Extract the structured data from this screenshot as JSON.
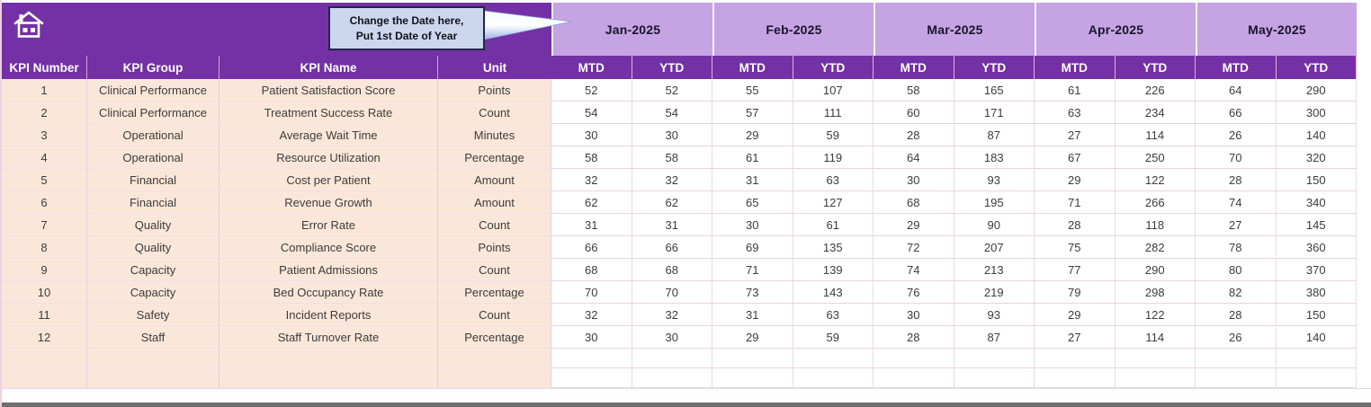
{
  "banner": {
    "callout_line1": "Change the Date here,",
    "callout_line2": "Put 1st Date of Year"
  },
  "months": [
    "Jan-2025",
    "Feb-2025",
    "Mar-2025",
    "Apr-2025",
    "May-2025"
  ],
  "left_headers": [
    "KPI Number",
    "KPI Group",
    "KPI Name",
    "Unit"
  ],
  "sub_headers": [
    "MTD",
    "YTD"
  ],
  "rows": [
    {
      "num": "1",
      "group": "Clinical Performance",
      "name": "Patient Satisfaction Score",
      "unit": "Points",
      "values": [
        "52",
        "52",
        "55",
        "107",
        "58",
        "165",
        "61",
        "226",
        "64",
        "290"
      ]
    },
    {
      "num": "2",
      "group": "Clinical Performance",
      "name": "Treatment Success Rate",
      "unit": "Count",
      "values": [
        "54",
        "54",
        "57",
        "111",
        "60",
        "171",
        "63",
        "234",
        "66",
        "300"
      ]
    },
    {
      "num": "3",
      "group": "Operational",
      "name": "Average Wait Time",
      "unit": "Minutes",
      "values": [
        "30",
        "30",
        "29",
        "59",
        "28",
        "87",
        "27",
        "114",
        "26",
        "140"
      ]
    },
    {
      "num": "4",
      "group": "Operational",
      "name": "Resource Utilization",
      "unit": "Percentage",
      "values": [
        "58",
        "58",
        "61",
        "119",
        "64",
        "183",
        "67",
        "250",
        "70",
        "320"
      ]
    },
    {
      "num": "5",
      "group": "Financial",
      "name": "Cost per Patient",
      "unit": "Amount",
      "values": [
        "32",
        "32",
        "31",
        "63",
        "30",
        "93",
        "29",
        "122",
        "28",
        "150"
      ]
    },
    {
      "num": "6",
      "group": "Financial",
      "name": "Revenue Growth",
      "unit": "Amount",
      "values": [
        "62",
        "62",
        "65",
        "127",
        "68",
        "195",
        "71",
        "266",
        "74",
        "340"
      ]
    },
    {
      "num": "7",
      "group": "Quality",
      "name": "Error Rate",
      "unit": "Count",
      "values": [
        "31",
        "31",
        "30",
        "61",
        "29",
        "90",
        "28",
        "118",
        "27",
        "145"
      ]
    },
    {
      "num": "8",
      "group": "Quality",
      "name": "Compliance Score",
      "unit": "Points",
      "values": [
        "66",
        "66",
        "69",
        "135",
        "72",
        "207",
        "75",
        "282",
        "78",
        "360"
      ]
    },
    {
      "num": "9",
      "group": "Capacity",
      "name": "Patient Admissions",
      "unit": "Count",
      "values": [
        "68",
        "68",
        "71",
        "139",
        "74",
        "213",
        "77",
        "290",
        "80",
        "370"
      ]
    },
    {
      "num": "10",
      "group": "Capacity",
      "name": "Bed Occupancy Rate",
      "unit": "Percentage",
      "values": [
        "70",
        "70",
        "73",
        "143",
        "76",
        "219",
        "79",
        "298",
        "82",
        "380"
      ]
    },
    {
      "num": "11",
      "group": "Safety",
      "name": "Incident Reports",
      "unit": "Count",
      "values": [
        "32",
        "32",
        "31",
        "63",
        "30",
        "93",
        "29",
        "122",
        "28",
        "150"
      ]
    },
    {
      "num": "12",
      "group": "Staff",
      "name": "Staff Turnover Rate",
      "unit": "Percentage",
      "values": [
        "30",
        "30",
        "29",
        "59",
        "28",
        "87",
        "27",
        "114",
        "26",
        "140"
      ]
    }
  ],
  "empty_row_count": 2,
  "icons": {
    "home": "house-glyph"
  },
  "colors": {
    "header_purple": "#7431a5",
    "month_lavender": "#c6a3e2",
    "row_peach": "#fbe7d9",
    "callout_bg": "#ccd7ee",
    "callout_border": "#23264a",
    "bottom_bar": "#6e6e6e"
  }
}
